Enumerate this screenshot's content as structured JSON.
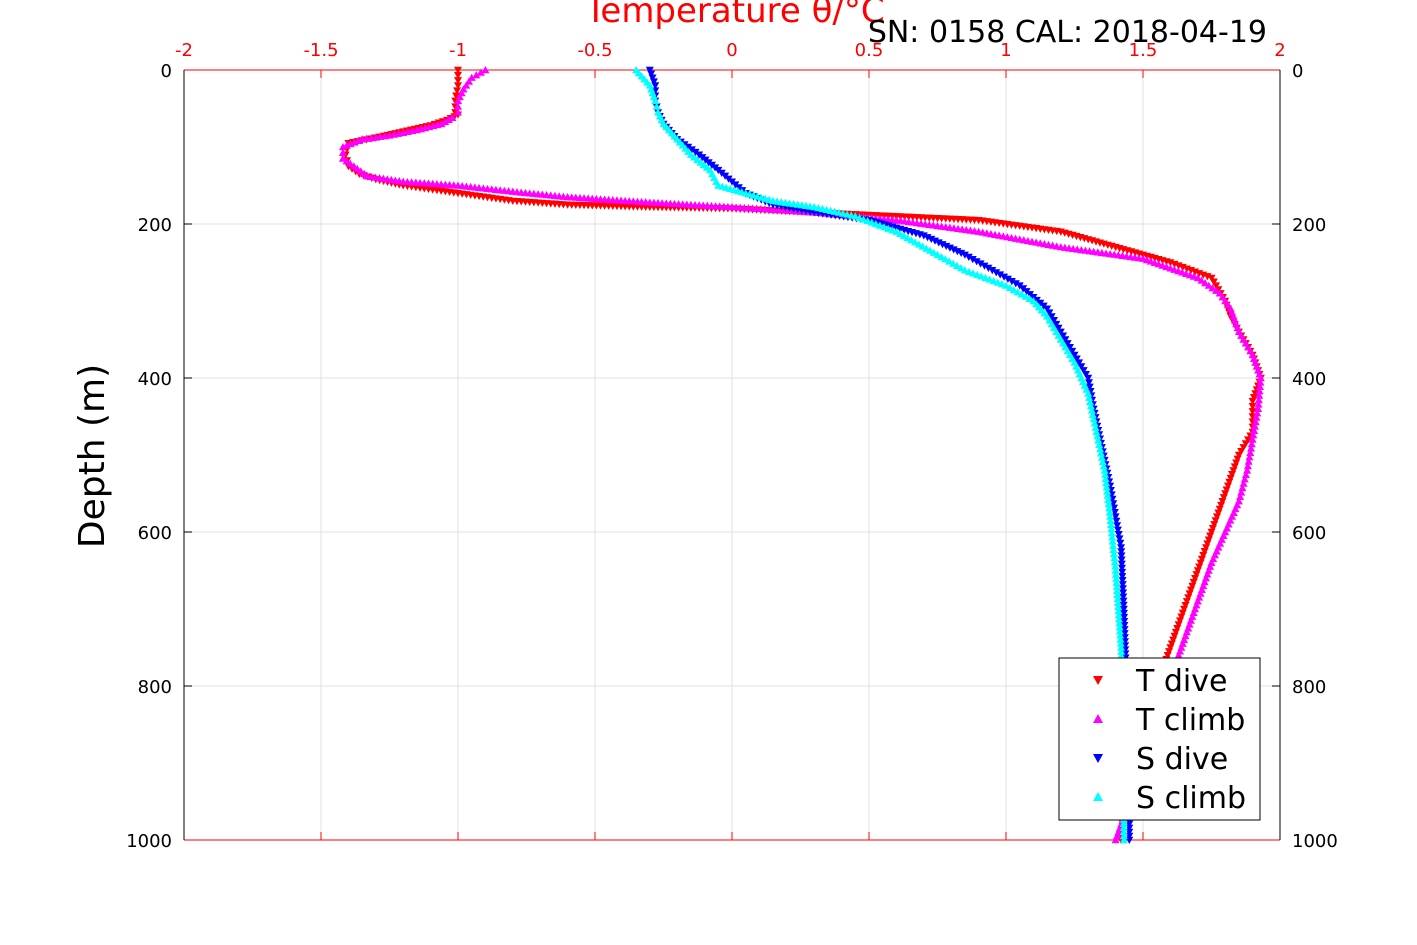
{
  "chart_data": {
    "type": "scatter",
    "title": "Temperature θ/°C",
    "annotation": "SN: 0158  CAL: 2018-04-19",
    "xlabel": "",
    "ylabel": "Depth (m)",
    "xlim": [
      -2,
      2
    ],
    "ylim": [
      0,
      1000
    ],
    "y_inverted": true,
    "x_axis_position": "top",
    "x_axis_color": "#ff0000",
    "x_ticks": [
      "-2",
      "-1.5",
      "-1",
      "-0.5",
      "0",
      "0.5",
      "1",
      "1.5",
      "2"
    ],
    "y_ticks": [
      "0",
      "200",
      "400",
      "600",
      "800",
      "1000"
    ],
    "grid": true,
    "legend_position": "bottom-right",
    "series": [
      {
        "name": "T dive",
        "color": "#ff0000",
        "marker": "triangle-down",
        "x": [
          -1.0,
          -1.0,
          -1.01,
          -1.01,
          -1.0,
          -1.04,
          -1.1,
          -1.2,
          -1.3,
          -1.4,
          -1.41,
          -1.4,
          -1.36,
          -1.3,
          -1.2,
          -1.0,
          -0.8,
          -0.6,
          -0.3,
          0.0,
          0.3,
          0.6,
          0.9,
          1.2,
          1.4,
          1.6,
          1.75,
          1.8,
          1.82,
          1.85,
          1.9,
          1.93,
          1.9,
          1.9,
          1.9,
          1.85,
          1.8,
          1.75,
          1.7,
          1.65,
          1.6,
          1.55,
          1.5,
          1.45,
          1.42
        ],
        "y": [
          0,
          20,
          40,
          55,
          58,
          65,
          72,
          80,
          88,
          95,
          110,
          125,
          135,
          142,
          150,
          160,
          170,
          175,
          178,
          180,
          185,
          190,
          195,
          210,
          230,
          250,
          270,
          300,
          320,
          340,
          370,
          400,
          430,
          450,
          470,
          500,
          550,
          600,
          650,
          700,
          750,
          800,
          850,
          900,
          1000
        ]
      },
      {
        "name": "T climb",
        "color": "#ff00ff",
        "marker": "triangle-up",
        "x": [
          -0.9,
          -0.95,
          -0.98,
          -1.0,
          -1.0,
          -1.02,
          -1.06,
          -1.15,
          -1.25,
          -1.35,
          -1.42,
          -1.42,
          -1.38,
          -1.33,
          -1.2,
          -1.0,
          -0.8,
          -0.6,
          -0.3,
          0.0,
          0.3,
          0.6,
          0.9,
          1.2,
          1.5,
          1.7,
          1.78,
          1.82,
          1.85,
          1.9,
          1.93,
          1.92,
          1.9,
          1.88,
          1.85,
          1.8,
          1.75,
          1.7,
          1.65,
          1.6,
          1.55,
          1.5,
          1.45,
          1.4
        ],
        "y": [
          0,
          10,
          25,
          40,
          55,
          62,
          70,
          78,
          85,
          90,
          100,
          115,
          125,
          138,
          145,
          150,
          158,
          165,
          172,
          178,
          185,
          195,
          210,
          230,
          245,
          270,
          290,
          310,
          340,
          370,
          400,
          440,
          480,
          520,
          560,
          600,
          640,
          690,
          740,
          790,
          850,
          900,
          950,
          1000
        ]
      },
      {
        "name": "S dive",
        "color": "#0000ff",
        "marker": "triangle-down",
        "x": [
          -0.3,
          -0.28,
          -0.28,
          -0.27,
          -0.25,
          -0.2,
          -0.12,
          -0.05,
          0.0,
          0.05,
          0.15,
          0.3,
          0.5,
          0.7,
          0.85,
          0.95,
          1.05,
          1.15,
          1.2,
          1.25,
          1.3,
          1.32,
          1.35,
          1.38,
          1.4,
          1.42,
          1.43,
          1.44,
          1.45,
          1.45
        ],
        "y": [
          0,
          20,
          40,
          55,
          70,
          90,
          110,
          130,
          145,
          160,
          175,
          185,
          195,
          215,
          240,
          260,
          280,
          310,
          340,
          370,
          400,
          440,
          490,
          540,
          580,
          620,
          700,
          800,
          900,
          1000
        ]
      },
      {
        "name": "S climb",
        "color": "#00ffff",
        "marker": "triangle-up",
        "x": [
          -0.35,
          -0.3,
          -0.28,
          -0.27,
          -0.25,
          -0.2,
          -0.15,
          -0.08,
          -0.05,
          0.05,
          0.15,
          0.3,
          0.45,
          0.6,
          0.75,
          0.85,
          1.0,
          1.1,
          1.15,
          1.2,
          1.25,
          1.3,
          1.33,
          1.36,
          1.38,
          1.4,
          1.42,
          1.43,
          1.43
        ],
        "y": [
          0,
          20,
          40,
          55,
          70,
          90,
          110,
          130,
          150,
          160,
          170,
          178,
          190,
          210,
          240,
          260,
          280,
          300,
          320,
          350,
          380,
          420,
          470,
          520,
          580,
          650,
          750,
          850,
          1000
        ]
      }
    ]
  }
}
